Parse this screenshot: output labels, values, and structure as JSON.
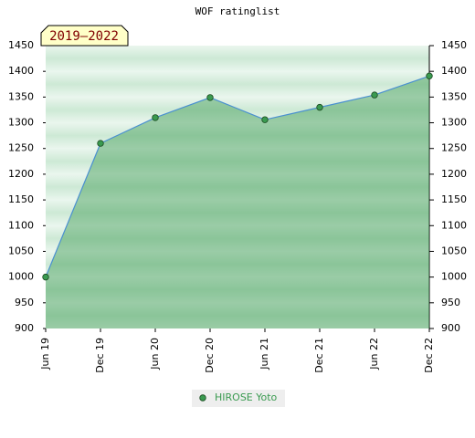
{
  "chart_data": {
    "type": "line",
    "title": "WOF ratinglist",
    "annotation": "2019–2022",
    "categories": [
      "Jun 19",
      "Dec 19",
      "Jun 20",
      "Dec 20",
      "Jun 21",
      "Dec 21",
      "Jun 22",
      "Dec 22"
    ],
    "series": [
      {
        "name": "HIROSE Yoto",
        "color": "#3a9a50",
        "values": [
          1000,
          1260,
          1310,
          1349,
          1306,
          1330,
          1354,
          1391
        ]
      }
    ],
    "ylim": [
      900,
      1450
    ],
    "yticks": [
      900,
      950,
      1000,
      1050,
      1100,
      1150,
      1200,
      1250,
      1300,
      1350,
      1400,
      1450
    ],
    "y_axis_both_sides": true,
    "area_fill": true
  }
}
